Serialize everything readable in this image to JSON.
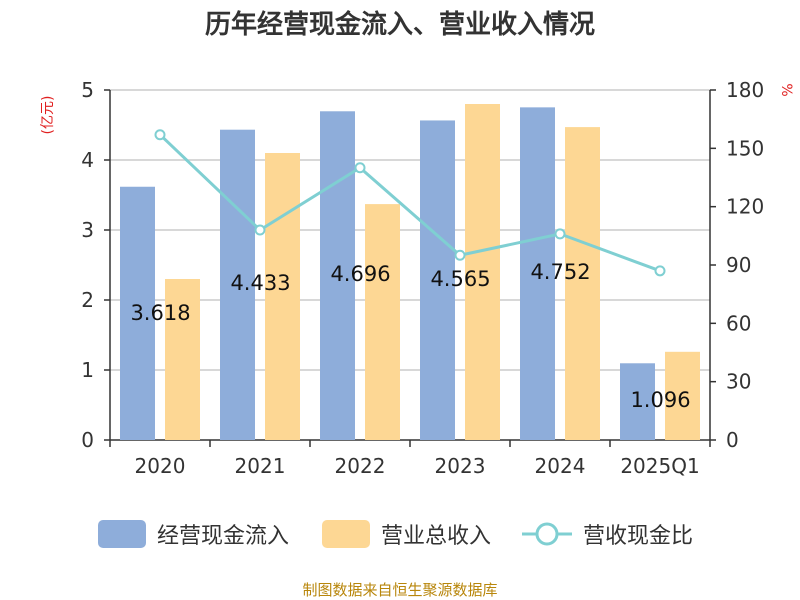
{
  "title": "历年经营现金流入、营业收入情况",
  "source_note": "制图数据来自恒生聚源数据库",
  "colors": {
    "cash_inflow": "#8eadda",
    "revenue": "#fdd794",
    "ratio": "#7fcfd2",
    "axis": "#333333",
    "grid": "#cccccc",
    "unit_text": "#e02020",
    "source_text": "#b8860b"
  },
  "chart_data": {
    "type": "bar",
    "categories": [
      "2020",
      "2021",
      "2022",
      "2023",
      "2024",
      "2025Q1"
    ],
    "y_left": {
      "label": "(亿元)",
      "ylim": [
        0,
        5
      ],
      "ticks": [
        "0",
        "1",
        "2",
        "3",
        "4",
        "5"
      ]
    },
    "y_right": {
      "label": "%",
      "ylim": [
        0,
        180
      ],
      "ticks": [
        "0",
        "30",
        "60",
        "90",
        "120",
        "150",
        "180"
      ]
    },
    "grid": true,
    "legend_position": "bottom",
    "series": [
      {
        "name": "经营现金流入",
        "type": "bar",
        "axis": "left",
        "values": [
          3.618,
          4.433,
          4.696,
          4.565,
          4.752,
          1.096
        ],
        "data_labels": [
          "3.618",
          "4.433",
          "4.696",
          "4.565",
          "4.752",
          "1.096"
        ]
      },
      {
        "name": "营业总收入",
        "type": "bar",
        "axis": "left",
        "values": [
          2.3,
          4.1,
          3.37,
          4.8,
          4.47,
          1.26
        ]
      },
      {
        "name": "营收现金比",
        "type": "line",
        "axis": "right",
        "values": [
          157,
          108,
          140,
          95,
          106,
          87
        ]
      }
    ]
  }
}
